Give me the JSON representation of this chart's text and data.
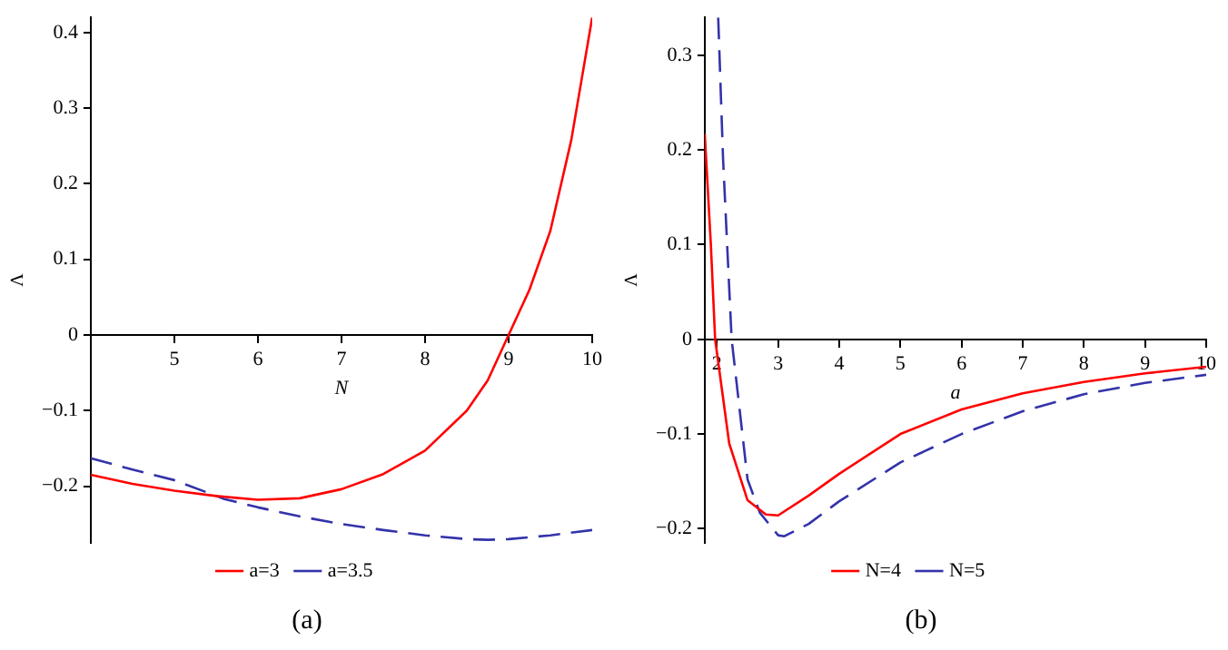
{
  "chart_data": [
    {
      "type": "line",
      "xlabel": "N",
      "ylabel": "Λ",
      "xlim": [
        4,
        10
      ],
      "ylim": [
        -0.275,
        0.42
      ],
      "xticks": [
        5,
        6,
        7,
        8,
        9,
        10
      ],
      "yticks": [
        -0.2,
        -0.1,
        0,
        0.1,
        0.2,
        0.3,
        0.4
      ],
      "grid": false,
      "legend": "bottom",
      "marker": "none",
      "annotations": [
        "(a)"
      ],
      "series": [
        {
          "name": "a=3",
          "color": "#ff0000",
          "line_style": "solid",
          "x": [
            4,
            4.5,
            5,
            5.5,
            6,
            6.5,
            7,
            7.5,
            8,
            8.5,
            8.75,
            9,
            9.25,
            9.5,
            9.75,
            10
          ],
          "values": [
            -0.185,
            -0.197,
            -0.206,
            -0.213,
            -0.218,
            -0.216,
            -0.204,
            -0.184,
            -0.153,
            -0.1,
            -0.06,
            0,
            0.06,
            0.138,
            0.258,
            0.42
          ]
        },
        {
          "name": "a=3.5",
          "color": "#3333aa",
          "line_style": "dashed",
          "x": [
            4,
            4.5,
            5,
            5.6,
            6,
            6.5,
            7,
            7.5,
            8,
            8.5,
            8.75,
            9,
            9.5,
            10
          ],
          "values": [
            -0.163,
            -0.178,
            -0.192,
            -0.217,
            -0.228,
            -0.24,
            -0.25,
            -0.258,
            -0.265,
            -0.27,
            -0.271,
            -0.27,
            -0.265,
            -0.258
          ]
        }
      ]
    },
    {
      "type": "line",
      "xlabel": "a",
      "ylabel": "Λ",
      "xlim": [
        1.8,
        10
      ],
      "ylim": [
        -0.215,
        0.34
      ],
      "xticks": [
        2,
        3,
        4,
        5,
        6,
        7,
        8,
        9,
        10
      ],
      "yticks": [
        -0.2,
        -0.1,
        0,
        0.1,
        0.2,
        0.3
      ],
      "grid": false,
      "legend": "bottom",
      "marker": "none",
      "annotations": [
        "(b)"
      ],
      "series": [
        {
          "name": "N=4",
          "color": "#ff0000",
          "line_style": "solid",
          "x": [
            1.8,
            1.9,
            1.97,
            2.2,
            2.5,
            2.8,
            3,
            3.5,
            4,
            5,
            6,
            7,
            8,
            9,
            10
          ],
          "values": [
            0.217,
            0.1,
            0,
            -0.11,
            -0.17,
            -0.185,
            -0.186,
            -0.165,
            -0.142,
            -0.1,
            -0.074,
            -0.057,
            -0.045,
            -0.036,
            -0.029
          ]
        },
        {
          "name": "N=5",
          "color": "#3333aa",
          "line_style": "dashed",
          "x": [
            2.02,
            2.1,
            2.24,
            2.5,
            2.7,
            3,
            3.1,
            3.5,
            4,
            5,
            6,
            7,
            8,
            9,
            10
          ],
          "values": [
            0.34,
            0.19,
            0,
            -0.148,
            -0.183,
            -0.207,
            -0.208,
            -0.195,
            -0.171,
            -0.13,
            -0.1,
            -0.076,
            -0.058,
            -0.046,
            -0.0375
          ]
        }
      ]
    }
  ]
}
